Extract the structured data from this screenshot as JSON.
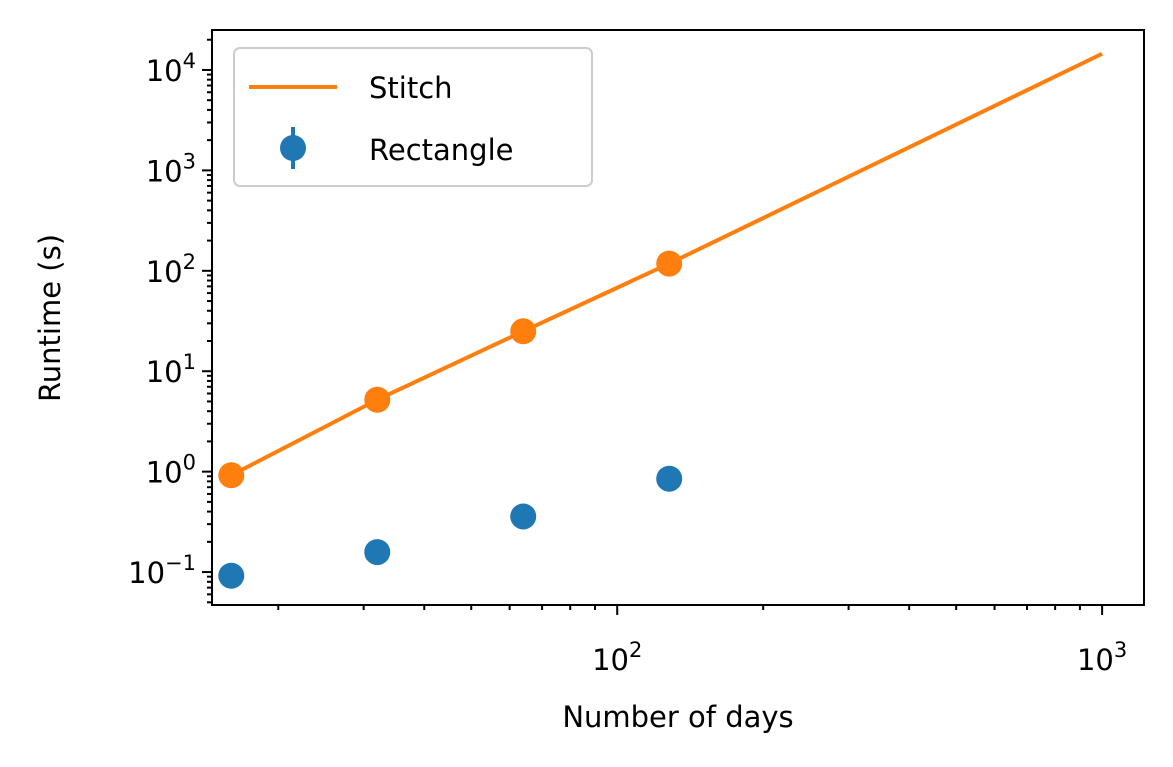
{
  "chart_data": {
    "type": "scatter",
    "title": "",
    "xlabel": "Number of days",
    "ylabel": "Runtime (s)",
    "x_scale": "log",
    "y_scale": "log",
    "xlim": [
      14.6,
      1220
    ],
    "ylim": [
      0.047,
      25000
    ],
    "grid": false,
    "legend": "upper left",
    "x_ticks": [
      {
        "value": 100,
        "base": "10",
        "exp": "2"
      },
      {
        "value": 1000,
        "base": "10",
        "exp": "3"
      }
    ],
    "y_ticks": [
      {
        "value": 0.1,
        "base": "10",
        "exp": "−1"
      },
      {
        "value": 1,
        "base": "10",
        "exp": "0"
      },
      {
        "value": 10,
        "base": "10",
        "exp": "1"
      },
      {
        "value": 100,
        "base": "10",
        "exp": "2"
      },
      {
        "value": 1000,
        "base": "10",
        "exp": "3"
      },
      {
        "value": 10000,
        "base": "10",
        "exp": "4"
      }
    ],
    "series": [
      {
        "name": "Stitch",
        "kind": "line",
        "color": "#ff7f0e",
        "x": [
          16,
          32,
          64,
          128,
          1000
        ],
        "y": [
          0.92,
          5.2,
          25,
          118,
          14500
        ],
        "markers": {
          "x": [
            16,
            32,
            64,
            128
          ],
          "y": [
            0.92,
            5.2,
            25,
            118
          ]
        }
      },
      {
        "name": "Rectangle",
        "kind": "errorbar",
        "color": "#1f77b4",
        "x": [
          16,
          32,
          64,
          128
        ],
        "y": [
          0.092,
          0.158,
          0.358,
          0.85
        ]
      }
    ]
  }
}
